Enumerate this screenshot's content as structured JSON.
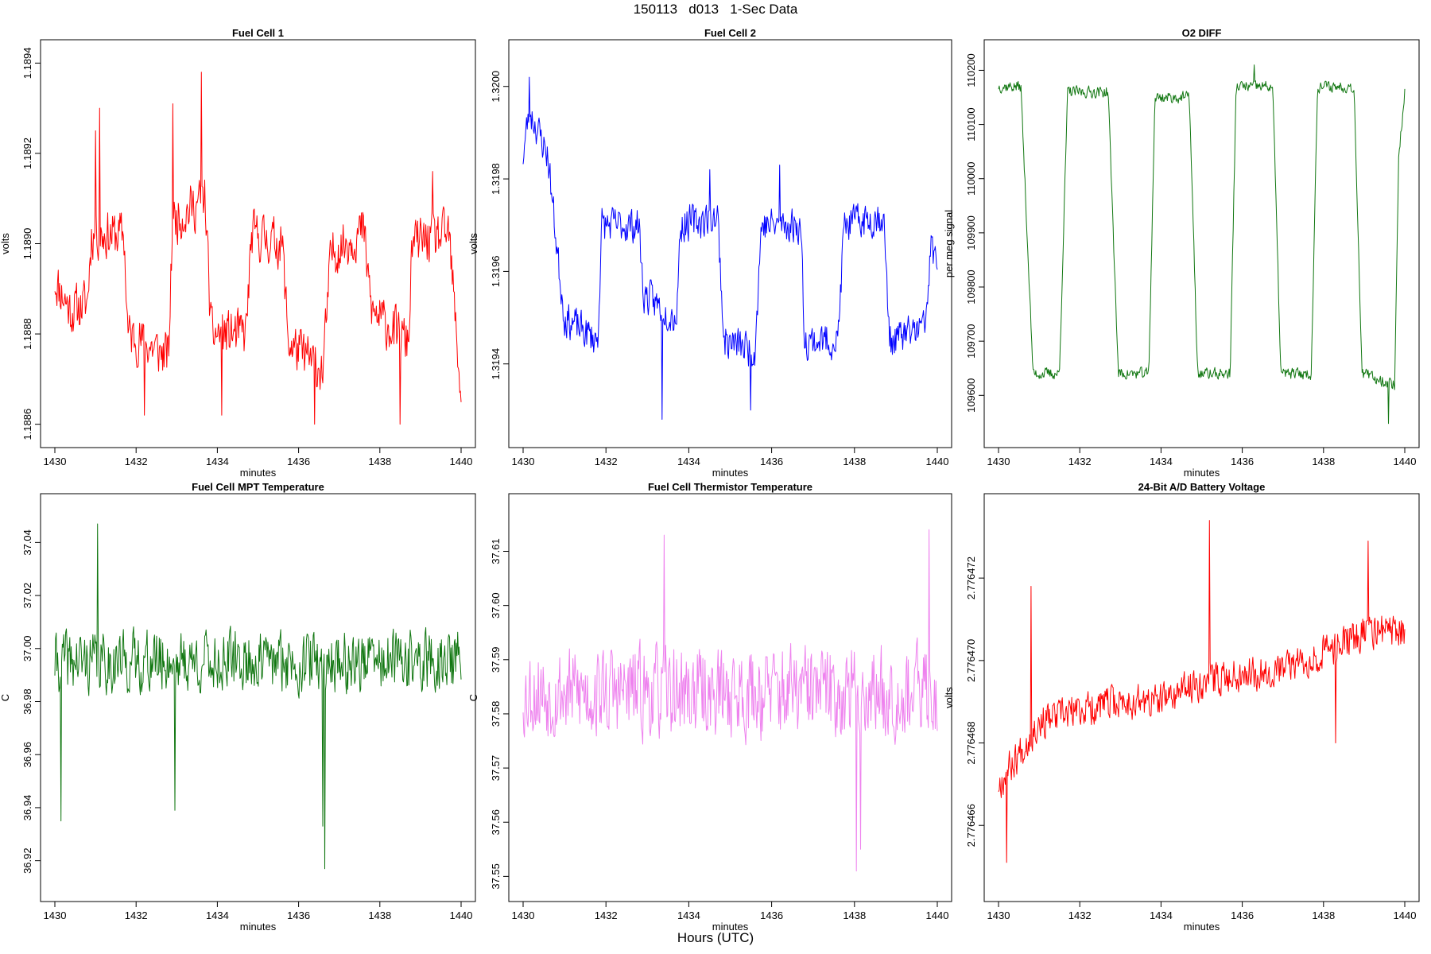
{
  "figure": {
    "title": "150113   d013   1-Sec Data",
    "bottom_label": "Hours (UTC)"
  },
  "chart_data": [
    {
      "type": "line",
      "title": "Fuel Cell 1",
      "xlabel": "minutes",
      "ylabel": "volts",
      "color": "#ff0000",
      "xlim": [
        1430,
        1440
      ],
      "ylim": [
        1.18858,
        1.18942
      ],
      "xticks": [
        1430,
        1432,
        1434,
        1436,
        1438,
        1440
      ],
      "yticks": [
        1.1886,
        1.1888,
        1.189,
        1.1892,
        1.1894
      ],
      "ytick_labels": [
        "1.1886",
        "1.1888",
        "1.1890",
        "1.1892",
        "1.1894"
      ],
      "n_points": 600,
      "seed": 11,
      "profile": [
        [
          1430,
          1.18892
        ],
        [
          1430.4,
          1.18885
        ],
        [
          1430.8,
          1.18887
        ],
        [
          1430.9,
          1.18902
        ],
        [
          1431.7,
          1.18902
        ],
        [
          1431.8,
          1.1888
        ],
        [
          1432.8,
          1.18875
        ],
        [
          1432.9,
          1.18905
        ],
        [
          1433.7,
          1.1891
        ],
        [
          1433.85,
          1.1888
        ],
        [
          1434.7,
          1.1888
        ],
        [
          1434.85,
          1.18902
        ],
        [
          1435.6,
          1.189
        ],
        [
          1435.75,
          1.18878
        ],
        [
          1436.6,
          1.18872
        ],
        [
          1436.8,
          1.18898
        ],
        [
          1437.6,
          1.18903
        ],
        [
          1437.8,
          1.18885
        ],
        [
          1438.7,
          1.18878
        ],
        [
          1438.8,
          1.189
        ],
        [
          1439.7,
          1.18902
        ],
        [
          1440,
          1.18866
        ]
      ],
      "noise": 7e-05,
      "spikes": [
        [
          1431.0,
          1.18925
        ],
        [
          1431.1,
          1.1893
        ],
        [
          1432.9,
          1.18931
        ],
        [
          1433.6,
          1.18938
        ],
        [
          1432.2,
          1.18862
        ],
        [
          1434.1,
          1.18862
        ],
        [
          1436.4,
          1.1886
        ],
        [
          1438.5,
          1.1886
        ],
        [
          1439.3,
          1.18916
        ]
      ]
    },
    {
      "type": "line",
      "title": "Fuel Cell 2",
      "xlabel": "minutes",
      "ylabel": "volts",
      "color": "#0000ff",
      "xlim": [
        1430,
        1440
      ],
      "ylim": [
        1.31925,
        1.32007
      ],
      "xticks": [
        1430,
        1432,
        1434,
        1436,
        1438,
        1440
      ],
      "yticks": [
        1.3194,
        1.3196,
        1.3198,
        1.32
      ],
      "ytick_labels": [
        "1.3194",
        "1.3196",
        "1.3198",
        "1.3200"
      ],
      "n_points": 600,
      "seed": 23,
      "profile": [
        [
          1430,
          1.31985
        ],
        [
          1430.15,
          1.31995
        ],
        [
          1430.6,
          1.31985
        ],
        [
          1430.85,
          1.31962
        ],
        [
          1431,
          1.3195
        ],
        [
          1431.8,
          1.31945
        ],
        [
          1431.9,
          1.3197
        ],
        [
          1432.8,
          1.3197
        ],
        [
          1432.9,
          1.31955
        ],
        [
          1433.7,
          1.3195
        ],
        [
          1433.8,
          1.3197
        ],
        [
          1434.7,
          1.31972
        ],
        [
          1434.85,
          1.31945
        ],
        [
          1435.6,
          1.31943
        ],
        [
          1435.75,
          1.3197
        ],
        [
          1436.7,
          1.3197
        ],
        [
          1436.8,
          1.31945
        ],
        [
          1437.6,
          1.31945
        ],
        [
          1437.75,
          1.3197
        ],
        [
          1438.7,
          1.31972
        ],
        [
          1438.85,
          1.31945
        ],
        [
          1439.7,
          1.31948
        ],
        [
          1439.85,
          1.31965
        ],
        [
          1440,
          1.31962
        ]
      ],
      "noise": 5e-05,
      "spikes": [
        [
          1430.15,
          1.32002
        ],
        [
          1433.35,
          1.31928
        ],
        [
          1435.5,
          1.3193
        ],
        [
          1436.2,
          1.31983
        ],
        [
          1434.5,
          1.31982
        ]
      ]
    },
    {
      "type": "line",
      "title": "O2 DIFF",
      "xlabel": "minutes",
      "ylabel": "per meg signal",
      "color": "#117711",
      "xlim": [
        1430,
        1440
      ],
      "ylim": [
        109530,
        110230
      ],
      "xticks": [
        1430,
        1432,
        1434,
        1436,
        1438,
        1440
      ],
      "yticks": [
        109600,
        109700,
        109800,
        109900,
        110000,
        110100,
        110200
      ],
      "ytick_labels": [
        "109600",
        "109700",
        "109800",
        "109900",
        "110000",
        "110100",
        "110200"
      ],
      "n_points": 600,
      "seed": 37,
      "profile": [
        [
          1430,
          110170
        ],
        [
          1430.55,
          110170
        ],
        [
          1430.85,
          109640
        ],
        [
          1431.5,
          109640
        ],
        [
          1431.7,
          110160
        ],
        [
          1432.7,
          110160
        ],
        [
          1432.95,
          109640
        ],
        [
          1433.7,
          109640
        ],
        [
          1433.85,
          110150
        ],
        [
          1434.7,
          110150
        ],
        [
          1434.9,
          109640
        ],
        [
          1435.7,
          109640
        ],
        [
          1435.85,
          110170
        ],
        [
          1436.75,
          110170
        ],
        [
          1436.95,
          109640
        ],
        [
          1437.7,
          109640
        ],
        [
          1437.85,
          110170
        ],
        [
          1438.75,
          110170
        ],
        [
          1438.95,
          109640
        ],
        [
          1439.75,
          109620
        ],
        [
          1439.85,
          110040
        ],
        [
          1440,
          110160
        ]
      ],
      "noise": 14,
      "spikes": [
        [
          1439.6,
          109548
        ],
        [
          1436.3,
          110210
        ]
      ]
    },
    {
      "type": "line",
      "title": "Fuel Cell MPT Temperature",
      "xlabel": "minutes",
      "ylabel": "C",
      "color": "#117711",
      "xlim": [
        1430,
        1440
      ],
      "ylim": [
        36.91,
        37.053
      ],
      "xticks": [
        1430,
        1432,
        1434,
        1436,
        1438,
        1440
      ],
      "yticks": [
        36.92,
        36.94,
        36.96,
        36.98,
        37.0,
        37.02,
        37.04
      ],
      "ytick_labels": [
        "36.92",
        "36.94",
        "36.96",
        "36.98",
        "37.00",
        "37.02",
        "37.04"
      ],
      "n_points": 600,
      "seed": 41,
      "profile": [
        [
          1430,
          36.995
        ],
        [
          1440,
          36.995
        ]
      ],
      "noise": 0.015,
      "spikes": [
        [
          1431.05,
          37.047
        ],
        [
          1436.65,
          36.917
        ],
        [
          1436.6,
          36.933
        ],
        [
          1430.15,
          36.935
        ],
        [
          1432.95,
          36.939
        ]
      ]
    },
    {
      "type": "line",
      "title": "Fuel Cell Thermistor Temperature",
      "xlabel": "minutes",
      "ylabel": "C",
      "color": "#ee82ee",
      "xlim": [
        1430,
        1440
      ],
      "ylim": [
        37.548,
        37.618
      ],
      "xticks": [
        1430,
        1432,
        1434,
        1436,
        1438,
        1440
      ],
      "yticks": [
        37.55,
        37.56,
        37.57,
        37.58,
        37.59,
        37.6,
        37.61
      ],
      "ytick_labels": [
        "37.55",
        "37.56",
        "37.57",
        "37.58",
        "37.59",
        "37.60",
        "37.61"
      ],
      "n_points": 600,
      "seed": 53,
      "profile": [
        [
          1430,
          37.584
        ],
        [
          1440,
          37.584
        ]
      ],
      "noise": 0.011,
      "spikes": [
        [
          1438.05,
          37.551
        ],
        [
          1439.8,
          37.614
        ],
        [
          1433.4,
          37.613
        ],
        [
          1438.15,
          37.555
        ]
      ]
    },
    {
      "type": "line",
      "title": "24-Bit A/D Battery Voltage",
      "xlabel": "minutes",
      "ylabel": "volts",
      "color": "#ff0000",
      "xlim": [
        1430,
        1440
      ],
      "ylim": [
        2.7764645,
        2.7764737
      ],
      "xticks": [
        1430,
        1432,
        1434,
        1436,
        1438,
        1440
      ],
      "yticks": [
        2.776466,
        2.776468,
        2.77647,
        2.776472
      ],
      "ytick_labels": [
        "2.776466",
        "2.776468",
        "2.776470",
        "2.776472"
      ],
      "n_points": 600,
      "seed": 67,
      "profile": [
        [
          1430,
          2.776467
        ],
        [
          1431,
          2.7764685
        ],
        [
          1432,
          2.7764688
        ],
        [
          1433,
          2.776469
        ],
        [
          1434,
          2.776469
        ],
        [
          1435,
          2.7764695
        ],
        [
          1436,
          2.7764697
        ],
        [
          1437,
          2.7764698
        ],
        [
          1438,
          2.7764702
        ],
        [
          1439,
          2.7764707
        ],
        [
          1440,
          2.7764707
        ]
      ],
      "noise": 5.5e-07,
      "spikes": [
        [
          1430.2,
          2.7764651
        ],
        [
          1430.8,
          2.7764718
        ],
        [
          1435.2,
          2.7764734
        ],
        [
          1439.1,
          2.7764729
        ],
        [
          1438.3,
          2.776468
        ]
      ]
    }
  ]
}
